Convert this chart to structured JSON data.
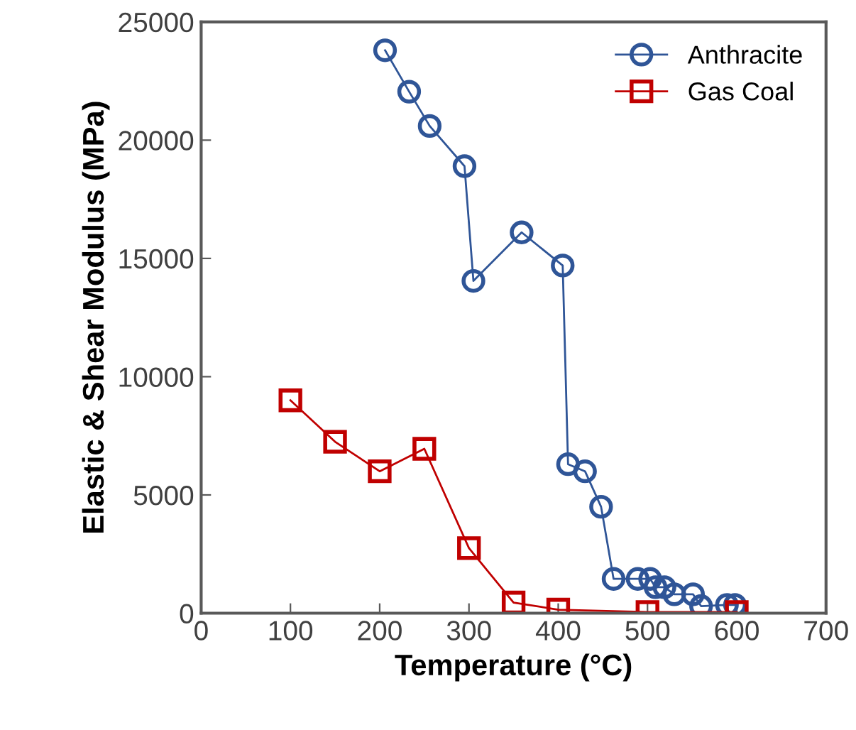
{
  "chart_data": {
    "type": "line",
    "xlabel": "Temperature (°C)",
    "ylabel": "Elastic & Shear Modulus (MPa)",
    "xlim": [
      0,
      700
    ],
    "xticks": [
      0,
      100,
      200,
      300,
      400,
      500,
      600,
      700
    ],
    "ylim": [
      0,
      25000
    ],
    "yticks": [
      0,
      5000,
      10000,
      15000,
      20000,
      25000
    ],
    "grid": false,
    "legend": "top right",
    "line_style": "solid",
    "series": [
      {
        "name": "Anthracite",
        "color": "#2f5597",
        "marker": "circle",
        "x": [
          206,
          233,
          256,
          295,
          305,
          359,
          405,
          411,
          430,
          448,
          462,
          489,
          503,
          509,
          519,
          530,
          551,
          560,
          589,
          598
        ],
        "values": [
          23800,
          22050,
          20600,
          18900,
          14050,
          16100,
          14700,
          6300,
          6000,
          4500,
          1450,
          1450,
          1450,
          1100,
          1100,
          800,
          800,
          300,
          350,
          350
        ]
      },
      {
        "name": "Gas Coal",
        "color": "#c00000",
        "marker": "square",
        "x": [
          100,
          150,
          200,
          250,
          300,
          350,
          400,
          500,
          600
        ],
        "values": [
          9000,
          7250,
          6000,
          6950,
          2750,
          450,
          150,
          50,
          50
        ]
      }
    ]
  }
}
